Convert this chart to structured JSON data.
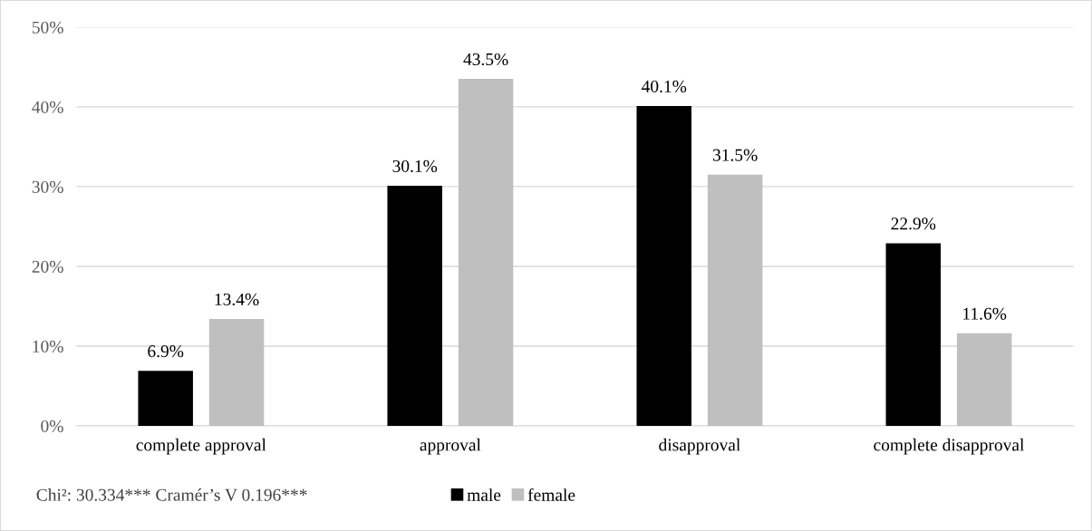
{
  "chart_data": {
    "type": "bar",
    "categories": [
      "complete approval",
      "approval",
      "disapproval",
      "complete disapproval"
    ],
    "series": [
      {
        "name": "male",
        "color": "#000000",
        "values": [
          6.9,
          30.1,
          40.1,
          22.9
        ],
        "value_labels": [
          "6.9%",
          "30.1%",
          "40.1%",
          "22.9%"
        ]
      },
      {
        "name": "female",
        "color": "#bfbfbf",
        "values": [
          13.4,
          43.5,
          31.5,
          11.6
        ],
        "value_labels": [
          "13.4%",
          "43.5%",
          "31.5%",
          "11.6%"
        ]
      }
    ],
    "ylim": [
      0,
      50
    ],
    "yticks": [
      {
        "value": 0,
        "label": "0%"
      },
      {
        "value": 10,
        "label": "10%"
      },
      {
        "value": 20,
        "label": "20%"
      },
      {
        "value": 30,
        "label": "30%"
      },
      {
        "value": 40,
        "label": "40%"
      },
      {
        "value": 50,
        "label": "50%"
      }
    ],
    "grid": "y",
    "legend": "bottom",
    "annotations": [
      "Chi²: 30.334*** Cramér’s V 0.196***"
    ]
  }
}
